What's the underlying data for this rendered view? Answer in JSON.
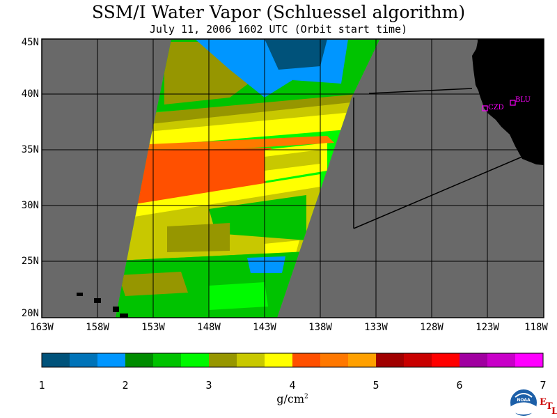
{
  "title": "SSM/I Water Vapor (Schluessel algorithm)",
  "subtitle": "July 11, 2006  1602 UTC  (Orbit start time)",
  "map": {
    "lat_labels": [
      "45N",
      "40N",
      "35N",
      "30N",
      "25N",
      "20N"
    ],
    "lon_labels": [
      "163W",
      "158W",
      "153W",
      "148W",
      "143W",
      "138W",
      "133W",
      "128W",
      "123W",
      "118W"
    ],
    "stations": [
      {
        "name": "CZD",
        "color": "#ff00ff"
      },
      {
        "name": "BLU",
        "color": "#ff00ff"
      }
    ],
    "colors": {
      "ocean_nodata": "#696969",
      "land": "#000000",
      "station": "#ff00ff"
    }
  },
  "colorbar": {
    "labels": [
      "1",
      "2",
      "3",
      "4",
      "5",
      "6",
      "7"
    ],
    "unit": "g/cm",
    "unit_exp": "2",
    "colors": [
      "#00527a",
      "#0073b8",
      "#0096ff",
      "#008c00",
      "#00c300",
      "#00fa00",
      "#969600",
      "#c8c800",
      "#ffff00",
      "#ff5000",
      "#ff7800",
      "#ffa000",
      "#a00000",
      "#c80000",
      "#ff0000",
      "#a000a0",
      "#c800c8",
      "#ff00ff"
    ]
  },
  "logo": {
    "text": "NOAA",
    "etl": [
      "E",
      "T",
      "L"
    ]
  }
}
